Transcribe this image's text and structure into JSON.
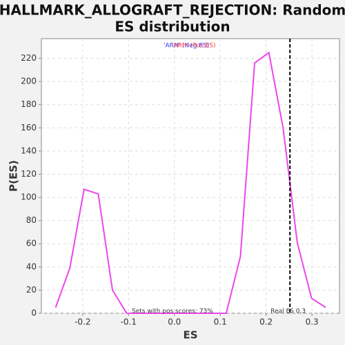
{
  "chart_data": {
    "type": "line",
    "title": [
      "HALLMARK_ALLOGRAFT_REJECTION: Random",
      "ES distribution"
    ],
    "x_label": "ES",
    "y_label": "P(ES)",
    "legend": [
      {
        "name": "'ARH' (Neg ES)",
        "color": "#3333ff"
      },
      {
        "name": "'ARH' (Pos ES)",
        "color": "#ff3333"
      }
    ],
    "x": [
      -0.259,
      -0.228,
      -0.197,
      -0.166,
      -0.135,
      -0.104,
      -0.073,
      -0.042,
      -0.011,
      0.02,
      0.051,
      0.082,
      0.113,
      0.144,
      0.175,
      0.206,
      0.237,
      0.268,
      0.299,
      0.33
    ],
    "series": [
      {
        "color": "#ee44ee",
        "values": [
          5,
          39,
          107,
          103,
          20,
          0,
          0,
          0,
          0,
          0,
          0,
          0,
          0,
          49,
          216,
          225,
          160,
          61,
          13,
          5
        ]
      }
    ],
    "real_es": {
      "value": 0.252,
      "label": "Real ES 0.3"
    },
    "pos_note": "Sets with pos scores: 73%",
    "xlim": [
      -0.29,
      0.36
    ],
    "ylim": [
      0,
      237
    ],
    "xticks": [
      -0.2,
      -0.1,
      {
        "value": 0,
        "label": "0.0"
      },
      0.1,
      0.2,
      0.3
    ],
    "yticks": [
      0,
      20,
      40,
      60,
      80,
      100,
      120,
      140,
      160,
      180,
      200,
      220
    ],
    "grid": true
  }
}
